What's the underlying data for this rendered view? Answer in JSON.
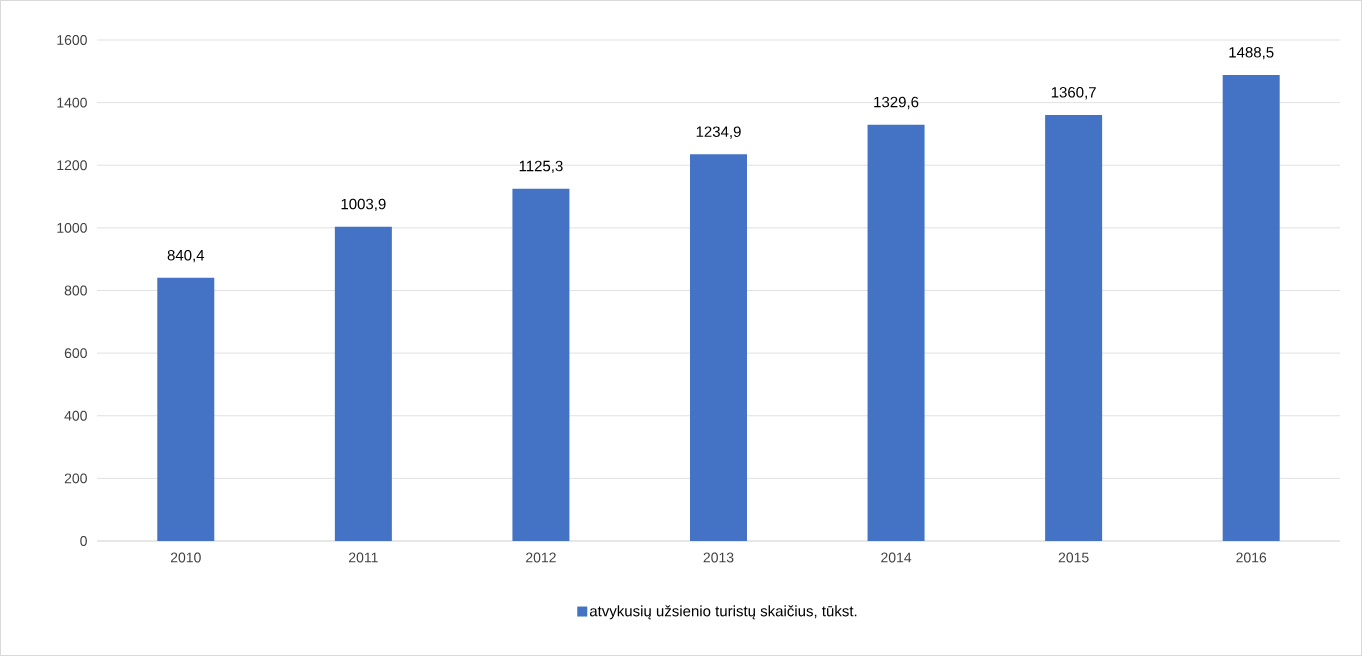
{
  "chart_data": {
    "type": "bar",
    "categories": [
      "2010",
      "2011",
      "2012",
      "2013",
      "2014",
      "2015",
      "2016"
    ],
    "series": [
      {
        "name": "atvykusių užsienio turistų skaičius, tūkst.",
        "color": "#4472c4",
        "values": [
          840.4,
          1003.9,
          1125.3,
          1234.9,
          1329.6,
          1360.7,
          1488.5
        ]
      }
    ],
    "value_labels": [
      "840,4",
      "1003,9",
      "1125,3",
      "1234,9",
      "1329,6",
      "1360,7",
      "1488,5"
    ],
    "ylim": [
      0,
      1600
    ],
    "yticks": [
      0,
      200,
      400,
      600,
      800,
      1000,
      1200,
      1400,
      1600
    ],
    "grid": "y",
    "legend": "bottom"
  }
}
